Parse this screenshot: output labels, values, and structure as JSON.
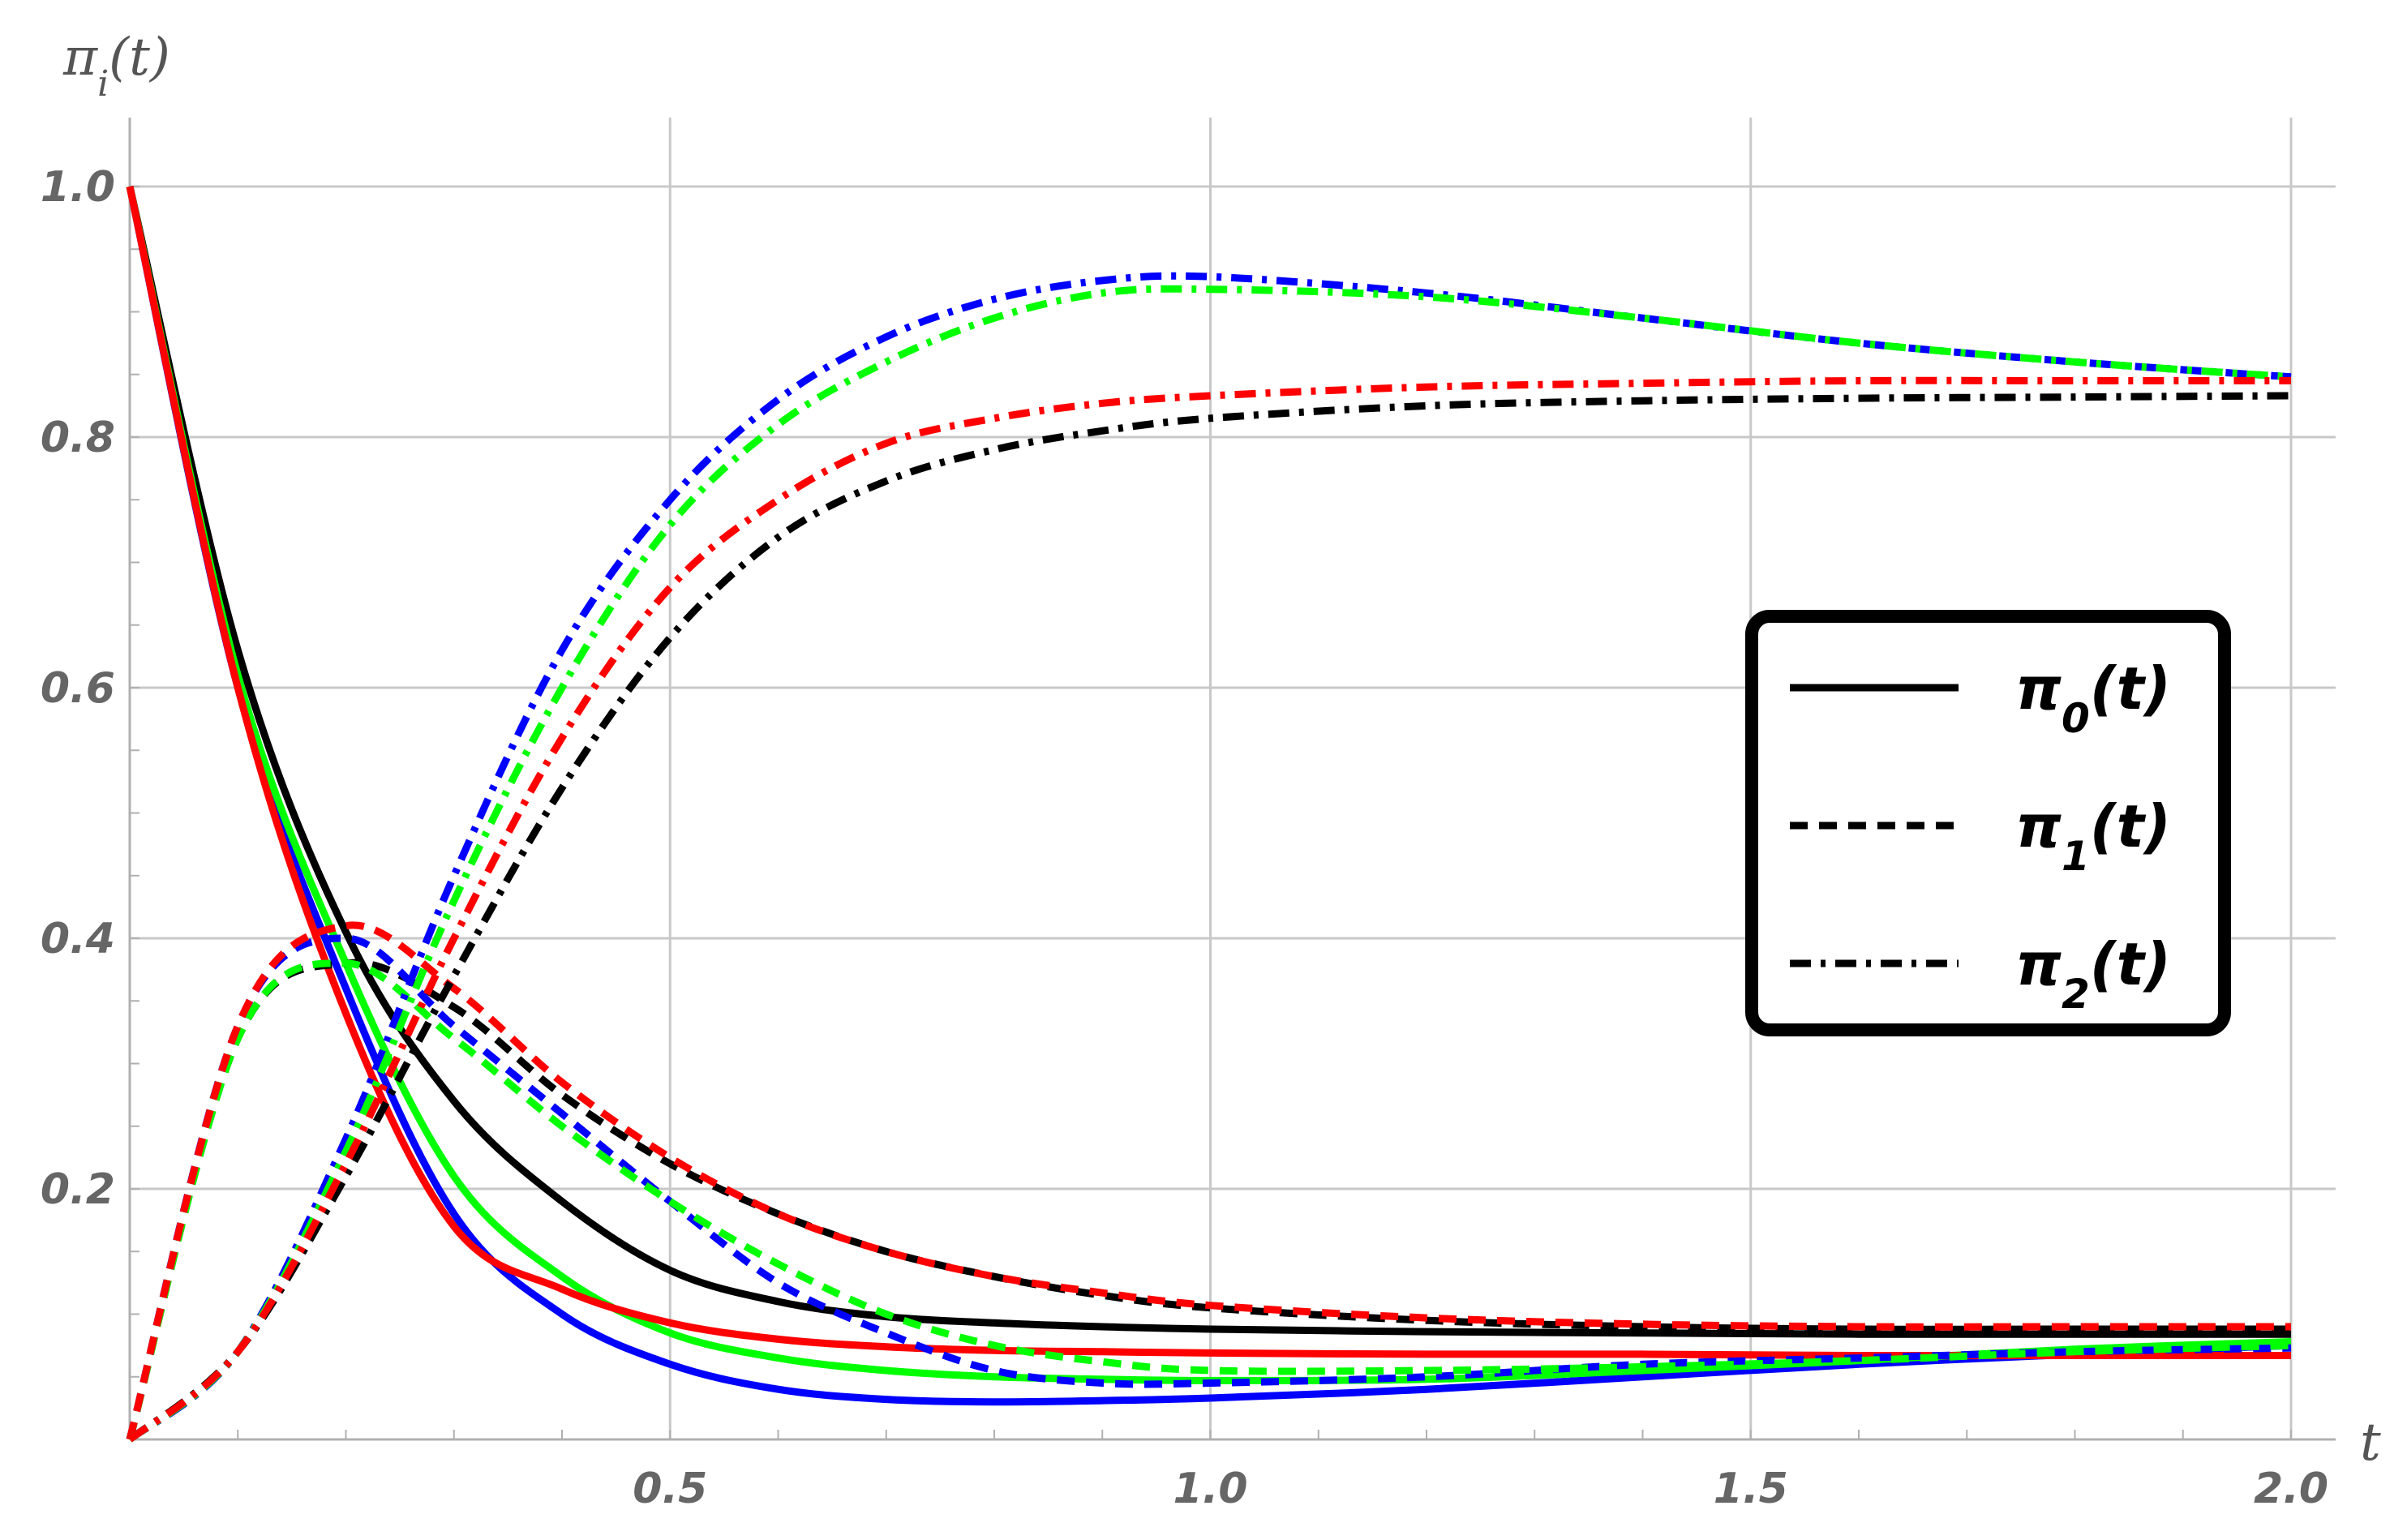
{
  "chart_data": {
    "type": "line",
    "xlabel": "t",
    "ylabel": "πi(t)",
    "xlim": [
      0,
      2.0
    ],
    "ylim": [
      0,
      1.0
    ],
    "grid": true,
    "legend_position": "right-middle",
    "x_ticks": [
      0.5,
      1.0,
      1.5,
      2.0
    ],
    "x_tick_labels": [
      "0.5",
      "1.0",
      "1.5",
      "2.0"
    ],
    "y_ticks": [
      0.2,
      0.4,
      0.6,
      0.8,
      1.0
    ],
    "y_tick_labels": [
      "0.2",
      "0.4",
      "0.6",
      "0.8",
      "1.0"
    ],
    "legend": [
      {
        "name": "π0(t)",
        "main": "π",
        "sub": "0",
        "rest": "(t)",
        "style": "solid"
      },
      {
        "name": "π1(t)",
        "main": "π",
        "sub": "1",
        "rest": "(t)",
        "style": "dashed"
      },
      {
        "name": "π2(t)",
        "main": "π",
        "sub": "2",
        "rest": "(t)",
        "style": "dashdot"
      }
    ],
    "x": [
      0,
      0.1,
      0.2,
      0.3,
      0.4,
      0.5,
      0.6,
      0.7,
      0.8,
      0.9,
      1.0,
      1.2,
      1.4,
      1.6,
      1.8,
      2.0
    ],
    "series": [
      {
        "state": "π0",
        "color": "#000000",
        "style": "solid",
        "values": [
          1.0,
          0.63,
          0.405,
          0.27,
          0.19,
          0.135,
          0.11,
          0.098,
          0.093,
          0.09,
          0.088,
          0.086,
          0.085,
          0.084,
          0.084,
          0.084
        ]
      },
      {
        "state": "π0",
        "color": "#0000ff",
        "style": "solid",
        "values": [
          1.0,
          0.6,
          0.36,
          0.18,
          0.1,
          0.06,
          0.04,
          0.032,
          0.03,
          0.031,
          0.033,
          0.04,
          0.05,
          0.06,
          0.068,
          0.075
        ]
      },
      {
        "state": "π0",
        "color": "#00ff00",
        "style": "solid",
        "values": [
          1.0,
          0.61,
          0.38,
          0.21,
          0.13,
          0.085,
          0.065,
          0.055,
          0.05,
          0.048,
          0.047,
          0.048,
          0.055,
          0.063,
          0.072,
          0.078
        ]
      },
      {
        "state": "π0",
        "color": "#ff0000",
        "style": "solid",
        "values": [
          1.0,
          0.6,
          0.34,
          0.17,
          0.12,
          0.093,
          0.08,
          0.074,
          0.071,
          0.07,
          0.069,
          0.068,
          0.068,
          0.067,
          0.067,
          0.067
        ]
      },
      {
        "state": "π1",
        "color": "#000000",
        "style": "dashed",
        "values": [
          0.0,
          0.32,
          0.38,
          0.345,
          0.275,
          0.22,
          0.18,
          0.15,
          0.13,
          0.115,
          0.105,
          0.095,
          0.09,
          0.088,
          0.088,
          0.088
        ]
      },
      {
        "state": "π1",
        "color": "#0000ff",
        "style": "dashed",
        "values": [
          0.0,
          0.33,
          0.4,
          0.33,
          0.26,
          0.19,
          0.125,
          0.085,
          0.055,
          0.045,
          0.045,
          0.05,
          0.06,
          0.065,
          0.07,
          0.073
        ]
      },
      {
        "state": "π1",
        "color": "#00ff00",
        "style": "dashed",
        "values": [
          0.0,
          0.32,
          0.38,
          0.32,
          0.25,
          0.19,
          0.14,
          0.1,
          0.075,
          0.062,
          0.055,
          0.055,
          0.058,
          0.063,
          0.07,
          0.075
        ]
      },
      {
        "state": "π1",
        "color": "#ff0000",
        "style": "dashed",
        "values": [
          0.0,
          0.33,
          0.41,
          0.36,
          0.285,
          0.225,
          0.18,
          0.15,
          0.13,
          0.117,
          0.107,
          0.097,
          0.092,
          0.09,
          0.09,
          0.09
        ]
      },
      {
        "state": "π2",
        "color": "#000000",
        "style": "dashdot",
        "values": [
          0.0,
          0.07,
          0.21,
          0.37,
          0.52,
          0.64,
          0.72,
          0.765,
          0.79,
          0.805,
          0.815,
          0.825,
          0.829,
          0.831,
          0.832,
          0.833
        ]
      },
      {
        "state": "π2",
        "color": "#0000ff",
        "style": "dashdot",
        "values": [
          0.0,
          0.07,
          0.24,
          0.45,
          0.63,
          0.75,
          0.83,
          0.88,
          0.91,
          0.925,
          0.928,
          0.915,
          0.895,
          0.875,
          0.86,
          0.848
        ]
      },
      {
        "state": "π2",
        "color": "#00ff00",
        "style": "dashdot",
        "values": [
          0.0,
          0.07,
          0.23,
          0.43,
          0.6,
          0.73,
          0.81,
          0.86,
          0.895,
          0.915,
          0.918,
          0.912,
          0.895,
          0.875,
          0.86,
          0.848
        ]
      },
      {
        "state": "π2",
        "color": "#ff0000",
        "style": "dashdot",
        "values": [
          0.0,
          0.07,
          0.22,
          0.4,
          0.56,
          0.68,
          0.75,
          0.795,
          0.815,
          0.827,
          0.833,
          0.84,
          0.843,
          0.845,
          0.845,
          0.845
        ]
      }
    ]
  }
}
